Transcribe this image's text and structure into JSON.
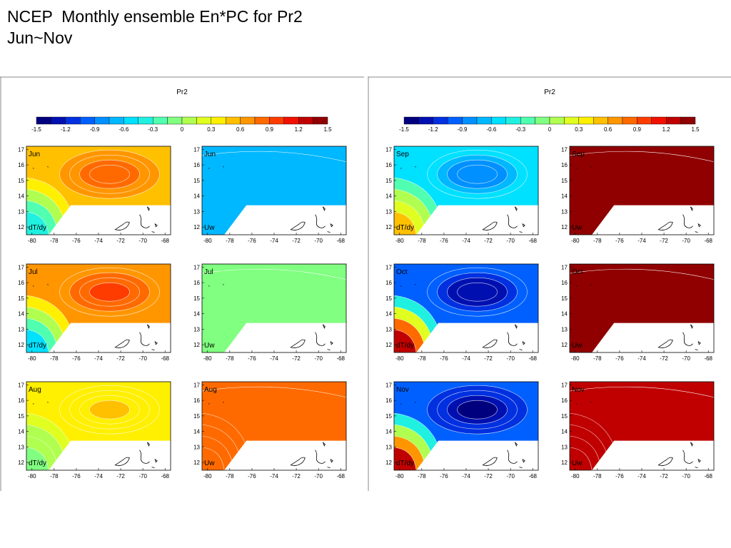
{
  "slide": {
    "title_line1": "NCEP  Monthly ensemble En*PC for Pr2",
    "title_line2": "Jun~Nov"
  },
  "colors": {
    "scale": [
      "#00007f",
      "#0010b0",
      "#0030e0",
      "#0060ff",
      "#0090ff",
      "#00b8ff",
      "#00e0ff",
      "#20f0e0",
      "#50ffb0",
      "#80ff80",
      "#b0ff50",
      "#e0ff20",
      "#ffef00",
      "#ffc000",
      "#ff9600",
      "#ff6a00",
      "#ff3c00",
      "#f01000",
      "#c00000",
      "#900000"
    ],
    "land_outline": "#000000",
    "contour": "#ffffff"
  },
  "chart_data": [
    {
      "type": "heatmap",
      "title": "Pr2",
      "colorbar": {
        "min": -1.5,
        "max": 1.5,
        "ticks": [
          "-1.5",
          "-1.2",
          "-0.9",
          "-0.6",
          "-0.3",
          "0",
          "0.3",
          "0.6",
          "0.9",
          "1.2",
          "1.5"
        ]
      },
      "xlim": [
        -80.5,
        -67.5
      ],
      "ylim": [
        11.5,
        17.2
      ],
      "xticks": [
        "-80",
        "-78",
        "-76",
        "-74",
        "-72",
        "-70",
        "-68"
      ],
      "yticks": [
        "17",
        "16",
        "15",
        "14",
        "13",
        "12"
      ],
      "panels": [
        {
          "month": "Jun",
          "field": "dT/dy",
          "base": 0.55,
          "peak": 0.85,
          "low": -0.4
        },
        {
          "month": "Jun",
          "field": "Uw",
          "base": -0.75,
          "peak": -0.75,
          "low": -0.75
        },
        {
          "month": "Jul",
          "field": "dT/dy",
          "base": 0.6,
          "peak": 0.95,
          "low": -0.5
        },
        {
          "month": "Jul",
          "field": "Uw",
          "base": -0.05,
          "peak": -0.05,
          "low": -0.05
        },
        {
          "month": "Aug",
          "field": "dT/dy",
          "base": 0.4,
          "peak": 0.45,
          "low": -0.1
        },
        {
          "month": "Aug",
          "field": "Uw",
          "base": 0.85,
          "peak": 0.85,
          "low": 0.75
        }
      ]
    },
    {
      "type": "heatmap",
      "title": "Pr2",
      "colorbar": {
        "min": -1.5,
        "max": 1.5,
        "ticks": [
          "-1.5",
          "-1.2",
          "-0.9",
          "-0.6",
          "-0.3",
          "0",
          "0.3",
          "0.6",
          "0.9",
          "1.2",
          "1.5"
        ]
      },
      "xlim": [
        -80.5,
        -67.5
      ],
      "ylim": [
        11.5,
        17.2
      ],
      "xticks": [
        "-80",
        "-78",
        "-76",
        "-74",
        "-72",
        "-70",
        "-68"
      ],
      "yticks": [
        "17",
        "16",
        "15",
        "14",
        "13",
        "12"
      ],
      "panels": [
        {
          "month": "Sep",
          "field": "dT/dy",
          "base": -0.5,
          "peak": -0.85,
          "low": 0.55
        },
        {
          "month": "Sep",
          "field": "Uw",
          "base": 1.5,
          "peak": 1.5,
          "low": 1.5
        },
        {
          "month": "Oct",
          "field": "dT/dy",
          "base": -0.9,
          "peak": -1.3,
          "low": 1.3
        },
        {
          "month": "Oct",
          "field": "Uw",
          "base": 1.5,
          "peak": 1.5,
          "low": 1.5
        },
        {
          "month": "Nov",
          "field": "dT/dy",
          "base": -1.0,
          "peak": -1.35,
          "low": 1.3
        },
        {
          "month": "Nov",
          "field": "Uw",
          "base": 1.2,
          "peak": 1.2,
          "low": 1.25
        }
      ]
    }
  ]
}
